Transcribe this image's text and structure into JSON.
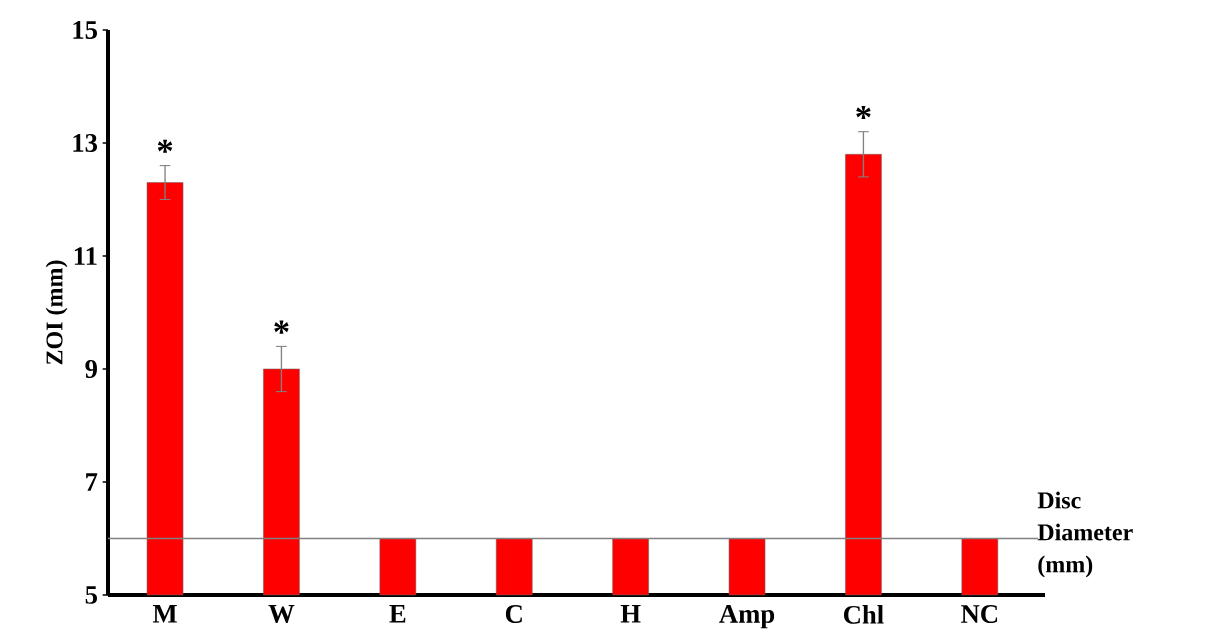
{
  "chart_data": {
    "type": "bar",
    "ylabel": "ZOI (mm)",
    "categories": [
      "M",
      "W",
      "E",
      "C",
      "H",
      "Amp",
      "Chl",
      "NC"
    ],
    "values": [
      12.3,
      9.0,
      6.0,
      6.0,
      6.0,
      6.0,
      12.8,
      6.0
    ],
    "errors": [
      0.3,
      0.4,
      null,
      null,
      null,
      null,
      0.4,
      null
    ],
    "color": "#ff0000",
    "ylim": [
      5,
      15
    ],
    "yticks": [
      5,
      7,
      9,
      11,
      13,
      15
    ],
    "grid": false,
    "ref_lines": [
      {
        "axis": "y",
        "value": 6,
        "label": "Disc Diameter (mm)",
        "color": "#808080"
      }
    ],
    "annotations": [
      "*",
      "*",
      "*"
    ]
  }
}
